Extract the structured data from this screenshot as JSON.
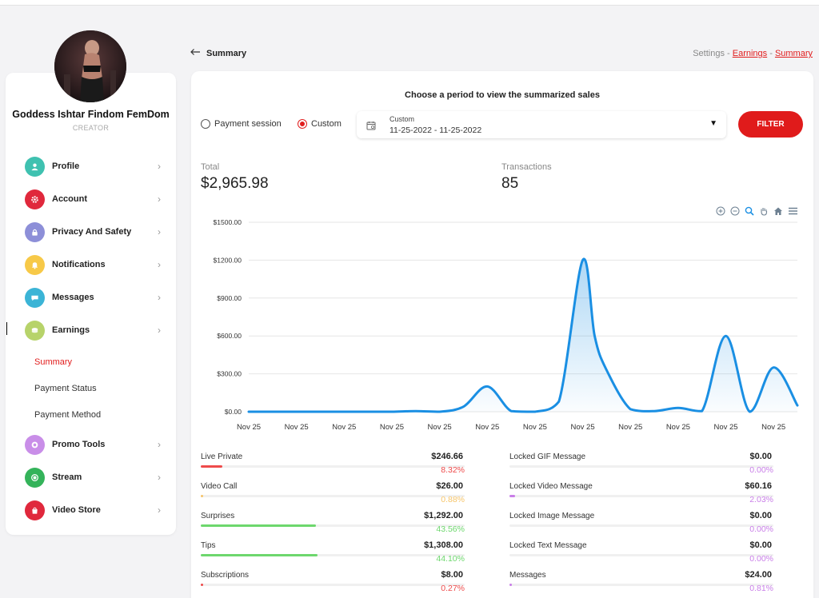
{
  "profile": {
    "name": "Goddess Ishtar Findom FemDom",
    "role": "CREATOR"
  },
  "sidebar": {
    "items": [
      {
        "label": "Profile",
        "icon": "user-icon",
        "color": "#3fc1b0"
      },
      {
        "label": "Account",
        "icon": "gear-icon",
        "color": "#e0283c"
      },
      {
        "label": "Privacy And Safety",
        "icon": "lock-icon",
        "color": "#8d8fd8"
      },
      {
        "label": "Notifications",
        "icon": "bell-icon",
        "color": "#f7c948"
      },
      {
        "label": "Messages",
        "icon": "chat-icon",
        "color": "#3bb4d6"
      },
      {
        "label": "Earnings",
        "icon": "coins-icon",
        "color": "#b7d36a"
      },
      {
        "label": "Promo Tools",
        "icon": "badge-icon",
        "color": "#c98ee8"
      },
      {
        "label": "Stream",
        "icon": "stream-icon",
        "color": "#34b35a"
      },
      {
        "label": "Video Store",
        "icon": "bag-icon",
        "color": "#e0283c"
      }
    ],
    "earnings_sub": [
      "Summary",
      "Payment Status",
      "Payment Method"
    ]
  },
  "header": {
    "back_icon": "arrow-left-icon",
    "title": "Summary",
    "breadcrumb": {
      "root": "Settings",
      "sep": " - ",
      "mid": "Earnings",
      "current": "Summary"
    }
  },
  "filter": {
    "heading": "Choose a period to view the summarized sales",
    "radio_session": "Payment session",
    "radio_custom": "Custom",
    "selected_radio": "Custom",
    "select_type": "Custom",
    "select_value": "11-25-2022 - 11-25-2022",
    "button": "FILTER",
    "accent": "#e01b1b"
  },
  "stats": {
    "total_label": "Total",
    "total_value": "$2,965.98",
    "transactions_label": "Transactions",
    "transactions_value": "85"
  },
  "chart_data": {
    "type": "area",
    "title": "",
    "xlabel": "",
    "ylabel": "",
    "ylim": [
      0,
      1500
    ],
    "y_ticks": [
      "$0.00",
      "$300.00",
      "$600.00",
      "$900.00",
      "$1200.00",
      "$1500.00"
    ],
    "x_tick_labels": [
      "Nov 25",
      "Nov 25",
      "Nov 25",
      "Nov 25",
      "Nov 25",
      "Nov 25",
      "Nov 25",
      "Nov 25",
      "Nov 25",
      "Nov 25",
      "Nov 25",
      "Nov 25"
    ],
    "grid": true,
    "color": "#1a8fe3",
    "x": [
      0,
      0.5,
      1,
      1.5,
      2,
      2.5,
      3,
      3.5,
      4,
      4.5,
      5,
      5.5,
      6,
      6.5,
      7,
      7.25,
      7.5,
      8,
      8.5,
      9,
      9.5,
      10,
      10.5,
      11,
      11.5
    ],
    "values": [
      0,
      0,
      0,
      0,
      0,
      0,
      0,
      5,
      0,
      40,
      200,
      5,
      0,
      80,
      1200,
      600,
      330,
      20,
      5,
      30,
      5,
      600,
      0,
      350,
      50
    ]
  },
  "breakdown_left": [
    {
      "name": "Live Private",
      "amount": "$246.66",
      "pct": "8.32%",
      "frac": 0.0832,
      "color": "#ee4b4b"
    },
    {
      "name": "Video Call",
      "amount": "$26.00",
      "pct": "0.88%",
      "frac": 0.0088,
      "color": "#f6c56a"
    },
    {
      "name": "Surprises",
      "amount": "$1,292.00",
      "pct": "43.56%",
      "frac": 0.4356,
      "color": "#6dd76d"
    },
    {
      "name": "Tips",
      "amount": "$1,308.00",
      "pct": "44.10%",
      "frac": 0.441,
      "color": "#6dd76d"
    },
    {
      "name": "Subscriptions",
      "amount": "$8.00",
      "pct": "0.27%",
      "frac": 0.0027,
      "color": "#ee4b4b"
    }
  ],
  "breakdown_right": [
    {
      "name": "Locked GIF Message",
      "amount": "$0.00",
      "pct": "0.00%",
      "frac": 0,
      "color": "#c97ee8"
    },
    {
      "name": "Locked Video Message",
      "amount": "$60.16",
      "pct": "2.03%",
      "frac": 0.0203,
      "color": "#c97ee8"
    },
    {
      "name": "Locked Image Message",
      "amount": "$0.00",
      "pct": "0.00%",
      "frac": 0,
      "color": "#c97ee8"
    },
    {
      "name": "Locked Text Message",
      "amount": "$0.00",
      "pct": "0.00%",
      "frac": 0,
      "color": "#c97ee8"
    },
    {
      "name": "Messages",
      "amount": "$24.00",
      "pct": "0.81%",
      "frac": 0.0081,
      "color": "#c97ee8"
    }
  ]
}
